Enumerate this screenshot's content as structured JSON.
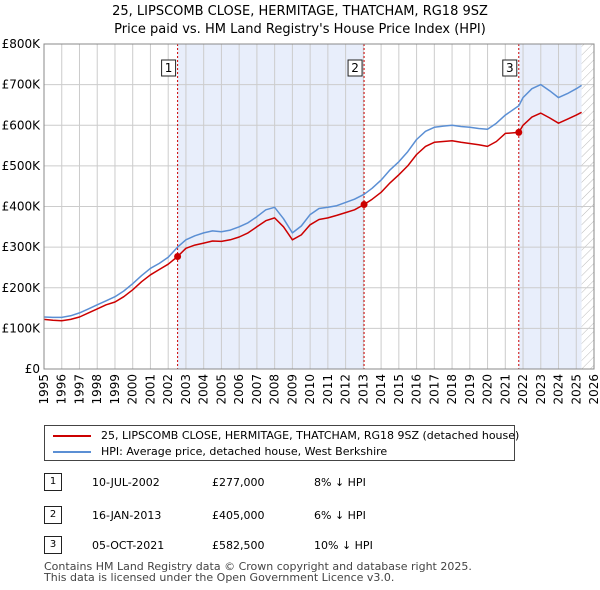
{
  "chart_data": {
    "type": "line",
    "title_line1": "25, LIPSCOMB CLOSE, HERMITAGE, THATCHAM, RG18 9SZ",
    "title_line2": "Price paid vs. HM Land Registry's House Price Index (HPI)",
    "xlim": [
      1995,
      2026
    ],
    "ylim": [
      0,
      800000
    ],
    "y_ticks": [
      {
        "value": 0,
        "label": "£0"
      },
      {
        "value": 100000,
        "label": "£100K"
      },
      {
        "value": 200000,
        "label": "£200K"
      },
      {
        "value": 300000,
        "label": "£300K"
      },
      {
        "value": 400000,
        "label": "£400K"
      },
      {
        "value": 500000,
        "label": "£500K"
      },
      {
        "value": 600000,
        "label": "£600K"
      },
      {
        "value": 700000,
        "label": "£700K"
      },
      {
        "value": 800000,
        "label": "£800K"
      }
    ],
    "x_ticks": [
      "1995",
      "1996",
      "1997",
      "1998",
      "1999",
      "2000",
      "2001",
      "2002",
      "2003",
      "2004",
      "2005",
      "2006",
      "2007",
      "2008",
      "2009",
      "2010",
      "2011",
      "2012",
      "2013",
      "2014",
      "2015",
      "2016",
      "2017",
      "2018",
      "2019",
      "2020",
      "2021",
      "2022",
      "2023",
      "2024",
      "2025",
      "2026"
    ],
    "ownership_shading": [
      [
        2002.53,
        2013.04
      ],
      [
        2021.76,
        2025.3
      ]
    ],
    "future_hatch_from": 2025.3,
    "series": [
      {
        "name": "25, LIPSCOMB CLOSE, HERMITAGE, THATCHAM, RG18 9SZ (detached house)",
        "color": "#cc0000",
        "points": [
          [
            1995.0,
            122000
          ],
          [
            1995.5,
            120000
          ],
          [
            1996.0,
            119000
          ],
          [
            1996.5,
            122000
          ],
          [
            1997.0,
            128000
          ],
          [
            1997.5,
            138000
          ],
          [
            1998.0,
            148000
          ],
          [
            1998.5,
            158000
          ],
          [
            1999.0,
            165000
          ],
          [
            1999.5,
            178000
          ],
          [
            2000.0,
            195000
          ],
          [
            2000.5,
            215000
          ],
          [
            2001.0,
            232000
          ],
          [
            2001.5,
            245000
          ],
          [
            2002.0,
            258000
          ],
          [
            2002.53,
            277000
          ],
          [
            2003.0,
            297000
          ],
          [
            2003.5,
            305000
          ],
          [
            2004.0,
            310000
          ],
          [
            2004.5,
            315000
          ],
          [
            2005.0,
            314000
          ],
          [
            2005.5,
            318000
          ],
          [
            2006.0,
            325000
          ],
          [
            2006.5,
            335000
          ],
          [
            2007.0,
            350000
          ],
          [
            2007.5,
            365000
          ],
          [
            2008.0,
            372000
          ],
          [
            2008.5,
            350000
          ],
          [
            2009.0,
            318000
          ],
          [
            2009.5,
            330000
          ],
          [
            2010.0,
            355000
          ],
          [
            2010.5,
            368000
          ],
          [
            2011.0,
            372000
          ],
          [
            2011.5,
            378000
          ],
          [
            2012.0,
            385000
          ],
          [
            2012.5,
            392000
          ],
          [
            2013.04,
            405000
          ],
          [
            2013.5,
            418000
          ],
          [
            2014.0,
            435000
          ],
          [
            2014.5,
            458000
          ],
          [
            2015.0,
            478000
          ],
          [
            2015.5,
            500000
          ],
          [
            2016.0,
            528000
          ],
          [
            2016.5,
            548000
          ],
          [
            2017.0,
            558000
          ],
          [
            2017.5,
            560000
          ],
          [
            2018.0,
            562000
          ],
          [
            2018.5,
            558000
          ],
          [
            2019.0,
            555000
          ],
          [
            2019.5,
            552000
          ],
          [
            2020.0,
            548000
          ],
          [
            2020.5,
            560000
          ],
          [
            2021.0,
            580000
          ],
          [
            2021.76,
            582500
          ],
          [
            2022.0,
            600000
          ],
          [
            2022.5,
            620000
          ],
          [
            2023.0,
            630000
          ],
          [
            2023.5,
            618000
          ],
          [
            2024.0,
            605000
          ],
          [
            2024.5,
            615000
          ],
          [
            2025.0,
            625000
          ],
          [
            2025.3,
            632000
          ]
        ]
      },
      {
        "name": "HPI: Average price, detached house, West Berkshire",
        "color": "#5b8fd4",
        "points": [
          [
            1995.0,
            128000
          ],
          [
            1995.5,
            127000
          ],
          [
            1996.0,
            127000
          ],
          [
            1996.5,
            131000
          ],
          [
            1997.0,
            138000
          ],
          [
            1997.5,
            148000
          ],
          [
            1998.0,
            158000
          ],
          [
            1998.5,
            168000
          ],
          [
            1999.0,
            178000
          ],
          [
            1999.5,
            192000
          ],
          [
            2000.0,
            210000
          ],
          [
            2000.5,
            230000
          ],
          [
            2001.0,
            248000
          ],
          [
            2001.5,
            260000
          ],
          [
            2002.0,
            275000
          ],
          [
            2002.53,
            300000
          ],
          [
            2003.0,
            318000
          ],
          [
            2003.5,
            328000
          ],
          [
            2004.0,
            335000
          ],
          [
            2004.5,
            340000
          ],
          [
            2005.0,
            338000
          ],
          [
            2005.5,
            342000
          ],
          [
            2006.0,
            350000
          ],
          [
            2006.5,
            360000
          ],
          [
            2007.0,
            375000
          ],
          [
            2007.5,
            392000
          ],
          [
            2008.0,
            398000
          ],
          [
            2008.5,
            370000
          ],
          [
            2009.0,
            335000
          ],
          [
            2009.5,
            352000
          ],
          [
            2010.0,
            380000
          ],
          [
            2010.5,
            395000
          ],
          [
            2011.0,
            398000
          ],
          [
            2011.5,
            402000
          ],
          [
            2012.0,
            410000
          ],
          [
            2012.5,
            418000
          ],
          [
            2013.04,
            430000
          ],
          [
            2013.5,
            445000
          ],
          [
            2014.0,
            465000
          ],
          [
            2014.5,
            490000
          ],
          [
            2015.0,
            510000
          ],
          [
            2015.5,
            535000
          ],
          [
            2016.0,
            565000
          ],
          [
            2016.5,
            585000
          ],
          [
            2017.0,
            595000
          ],
          [
            2017.5,
            598000
          ],
          [
            2018.0,
            600000
          ],
          [
            2018.5,
            597000
          ],
          [
            2019.0,
            595000
          ],
          [
            2019.5,
            592000
          ],
          [
            2020.0,
            590000
          ],
          [
            2020.5,
            605000
          ],
          [
            2021.0,
            625000
          ],
          [
            2021.76,
            648000
          ],
          [
            2022.0,
            668000
          ],
          [
            2022.5,
            690000
          ],
          [
            2023.0,
            700000
          ],
          [
            2023.5,
            685000
          ],
          [
            2024.0,
            668000
          ],
          [
            2024.5,
            678000
          ],
          [
            2025.0,
            690000
          ],
          [
            2025.3,
            698000
          ]
        ]
      }
    ],
    "sales": [
      {
        "label": "1",
        "x": 2002.53,
        "value": 277000
      },
      {
        "label": "2",
        "x": 2013.04,
        "value": 405000
      },
      {
        "label": "3",
        "x": 2021.76,
        "value": 582500
      }
    ],
    "colors": {
      "shading": "#e8eefb",
      "grid": "#cccccc",
      "marker_line": "#cc0000"
    }
  },
  "legend": [
    {
      "label": "25, LIPSCOMB CLOSE, HERMITAGE, THATCHAM, RG18 9SZ (detached house)",
      "color": "#cc0000"
    },
    {
      "label": "HPI: Average price, detached house, West Berkshire",
      "color": "#5b8fd4"
    }
  ],
  "transactions": [
    {
      "num": "1",
      "date": "10-JUL-2002",
      "price": "£277,000",
      "delta": "8% ↓ HPI"
    },
    {
      "num": "2",
      "date": "16-JAN-2013",
      "price": "£405,000",
      "delta": "6% ↓ HPI"
    },
    {
      "num": "3",
      "date": "05-OCT-2021",
      "price": "£582,500",
      "delta": "10% ↓ HPI"
    }
  ],
  "footer": {
    "line1": "Contains HM Land Registry data © Crown copyright and database right 2025.",
    "line2": "This data is licensed under the Open Government Licence v3.0."
  }
}
